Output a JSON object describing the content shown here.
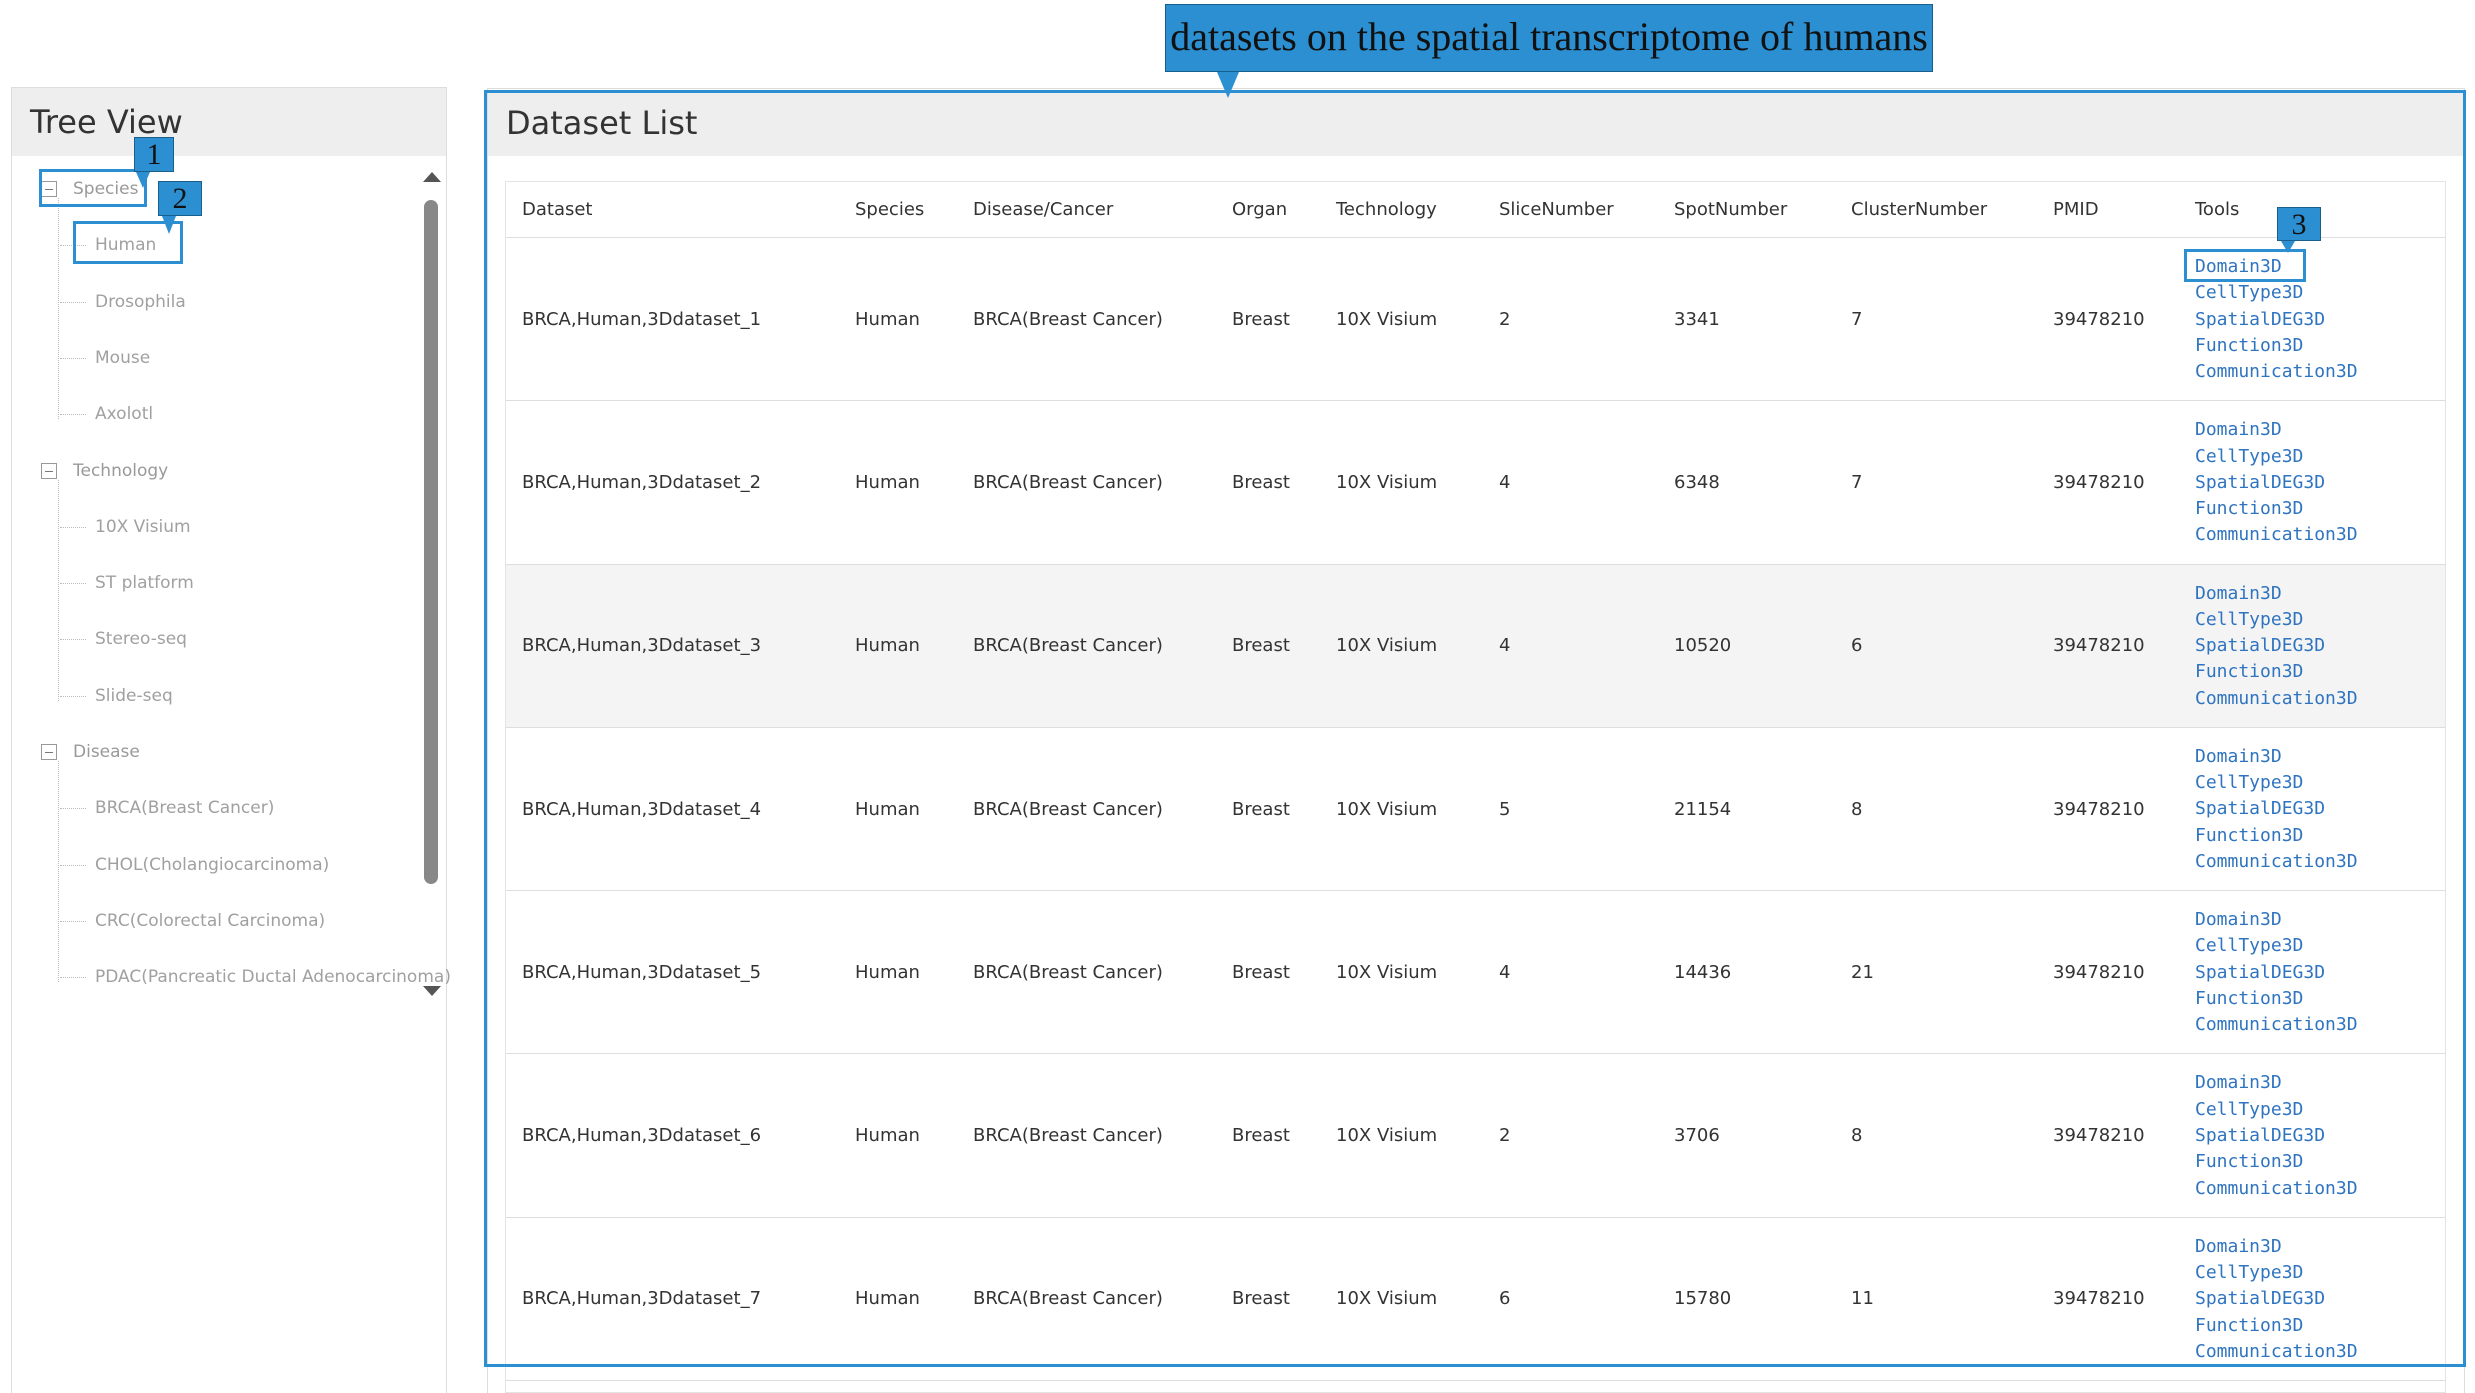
{
  "annotation": {
    "callout": "datasets on the spatial transcriptome of humans",
    "markers": [
      "1",
      "2",
      "3"
    ]
  },
  "tree": {
    "title": "Tree View",
    "sections": [
      {
        "label": "Species",
        "items": [
          "Human",
          "Drosophila",
          "Mouse",
          "Axolotl"
        ]
      },
      {
        "label": "Technology",
        "items": [
          "10X Visium",
          "ST platform",
          "Stereo-seq",
          "Slide-seq"
        ]
      },
      {
        "label": "Disease",
        "items": [
          "BRCA(Breast Cancer)",
          "CHOL(Cholangiocarcinoma)",
          "CRC(Colorectal Carcinoma)",
          "PDAC(Pancreatic Ductal Adenocarcinoma)"
        ]
      }
    ]
  },
  "table": {
    "title": "Dataset List",
    "columns": [
      "Dataset",
      "Species",
      "Disease/Cancer",
      "Organ",
      "Technology",
      "SliceNumber",
      "SpotNumber",
      "ClusterNumber",
      "PMID",
      "Tools"
    ],
    "rows": [
      [
        "BRCA,Human,3Ddataset_1",
        "Human",
        "BRCA(Breast Cancer)",
        "Breast",
        "10X Visium",
        2,
        3341,
        7,
        39478210,
        [
          "Domain3D",
          "CellType3D",
          "SpatialDEG3D",
          "Function3D",
          "Communication3D"
        ]
      ],
      [
        "BRCA,Human,3Ddataset_2",
        "Human",
        "BRCA(Breast Cancer)",
        "Breast",
        "10X Visium",
        4,
        6348,
        7,
        39478210,
        [
          "Domain3D",
          "CellType3D",
          "SpatialDEG3D",
          "Function3D",
          "Communication3D"
        ]
      ],
      [
        "BRCA,Human,3Ddataset_3",
        "Human",
        "BRCA(Breast Cancer)",
        "Breast",
        "10X Visium",
        4,
        10520,
        6,
        39478210,
        [
          "Domain3D",
          "CellType3D",
          "SpatialDEG3D",
          "Function3D",
          "Communication3D"
        ]
      ],
      [
        "BRCA,Human,3Ddataset_4",
        "Human",
        "BRCA(Breast Cancer)",
        "Breast",
        "10X Visium",
        5,
        21154,
        8,
        39478210,
        [
          "Domain3D",
          "CellType3D",
          "SpatialDEG3D",
          "Function3D",
          "Communication3D"
        ]
      ],
      [
        "BRCA,Human,3Ddataset_5",
        "Human",
        "BRCA(Breast Cancer)",
        "Breast",
        "10X Visium",
        4,
        14436,
        21,
        39478210,
        [
          "Domain3D",
          "CellType3D",
          "SpatialDEG3D",
          "Function3D",
          "Communication3D"
        ]
      ],
      [
        "BRCA,Human,3Ddataset_6",
        "Human",
        "BRCA(Breast Cancer)",
        "Breast",
        "10X Visium",
        2,
        3706,
        8,
        39478210,
        [
          "Domain3D",
          "CellType3D",
          "SpatialDEG3D",
          "Function3D",
          "Communication3D"
        ]
      ],
      [
        "BRCA,Human,3Ddataset_7",
        "Human",
        "BRCA(Breast Cancer)",
        "Breast",
        "10X Visium",
        6,
        15780,
        11,
        39478210,
        [
          "Domain3D",
          "CellType3D",
          "SpatialDEG3D",
          "Function3D",
          "Communication3D"
        ]
      ]
    ]
  }
}
